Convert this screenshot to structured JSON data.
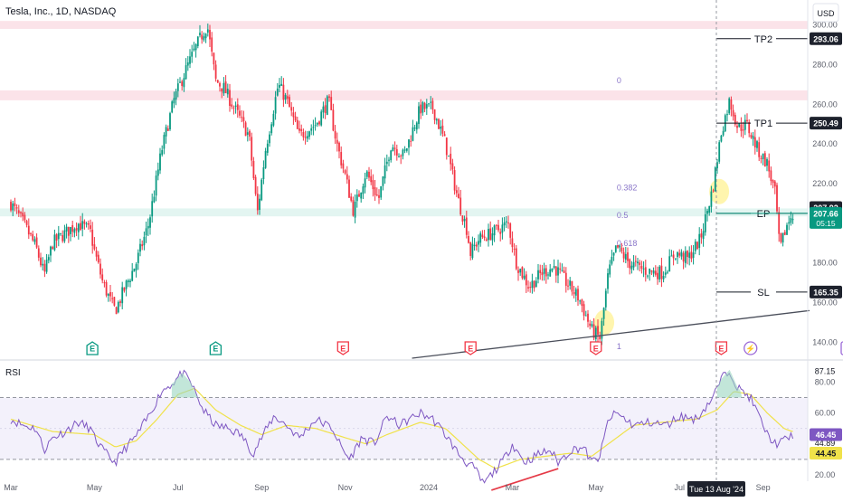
{
  "chart_data": {
    "type": "candlestick",
    "header": {
      "title": "Tesla, Inc., 1D, NASDAQ",
      "currency": "USD"
    },
    "price_axis": {
      "ticks": [
        300,
        280,
        260,
        240,
        220,
        200,
        180,
        160,
        140
      ],
      "tick_labels": [
        "300.00",
        "280.00",
        "260.00",
        "240.00",
        "220.00",
        "200.00",
        "180.00",
        "160.00",
        "140.00"
      ],
      "range": [
        132,
        308
      ]
    },
    "time_axis": {
      "labels": [
        "Mar",
        "May",
        "Jul",
        "Sep",
        "Nov",
        "2024",
        "Mar",
        "May",
        "Jul",
        "Sep"
      ],
      "label_months": [
        0,
        2,
        4,
        6,
        8,
        10,
        12,
        14,
        16,
        18
      ],
      "cursor_label": "Tue 13 Aug '24"
    },
    "zones": [
      {
        "name": "resistance-300",
        "from": 298,
        "to": 302,
        "color": "#fbe3e9"
      },
      {
        "name": "resistance-265",
        "from": 262,
        "to": 267,
        "color": "#fbe3e9"
      },
      {
        "name": "entry-zone",
        "from": 203.5,
        "to": 207.5,
        "color": "#e3f5f1"
      }
    ],
    "fibonacci": {
      "levels": [
        {
          "label": "0",
          "price": 272
        },
        {
          "label": "0.382",
          "price": 218
        },
        {
          "label": "0.5",
          "price": 204
        },
        {
          "label": "0.618",
          "price": 190
        },
        {
          "label": "1",
          "price": 138
        }
      ],
      "color": "#8a76c9"
    },
    "trend_lines": [
      {
        "name": "support-trendline",
        "from": {
          "month": 9.6,
          "price": 132
        },
        "to": {
          "month": 20.5,
          "price": 156
        },
        "color": "#4a4e5a"
      },
      {
        "name": "rsi-divergence",
        "from": {
          "month": 11.5,
          "rsi": 10
        },
        "to": {
          "month": 13.1,
          "rsi": 24
        },
        "color": "#e53a47"
      }
    ],
    "highlights": [
      {
        "name": "pivot-low-highlight",
        "month": 14.2,
        "price": 150
      },
      {
        "name": "fib-touch-highlight",
        "month": 16.95,
        "price": 216
      }
    ],
    "trade_levels": [
      {
        "label": "TP2",
        "price": 293.06,
        "value_label": "293.06"
      },
      {
        "label": "TP1",
        "price": 250.49,
        "value_label": "250.49"
      },
      {
        "label": "EP",
        "price": 205,
        "value_label": ""
      },
      {
        "label": "SL",
        "price": 165.35,
        "value_label": "165.35"
      }
    ],
    "price_markers": [
      {
        "value_label": "207.92",
        "price": 207.92,
        "style": "dark"
      },
      {
        "value_label": "207.66",
        "price": 205,
        "style": "green",
        "sub_label": "05:15"
      }
    ],
    "event_markers": [
      {
        "month": 1.95,
        "letter": "E",
        "type": "earnings-positive"
      },
      {
        "month": 4.9,
        "letter": "E",
        "type": "earnings-positive"
      },
      {
        "month": 7.95,
        "letter": "E",
        "type": "earnings-negative"
      },
      {
        "month": 11.0,
        "letter": "E",
        "type": "earnings-negative"
      },
      {
        "month": 14.0,
        "letter": "E",
        "type": "earnings-negative"
      },
      {
        "month": 17.0,
        "letter": "E",
        "type": "earnings-negative"
      },
      {
        "month": 17.7,
        "letter": "⚡",
        "type": "event"
      },
      {
        "month": 20.0,
        "letter": "E",
        "type": "earnings-future"
      }
    ],
    "price_anchors": [
      [
        0,
        210
      ],
      [
        0.3,
        200
      ],
      [
        0.6,
        188
      ],
      [
        0.8,
        174
      ],
      [
        1.0,
        190
      ],
      [
        1.3,
        195
      ],
      [
        1.6,
        200
      ],
      [
        1.9,
        196
      ],
      [
        2.0,
        186
      ],
      [
        2.2,
        170
      ],
      [
        2.4,
        160
      ],
      [
        2.5,
        156
      ],
      [
        2.7,
        166
      ],
      [
        3.0,
        180
      ],
      [
        3.3,
        200
      ],
      [
        3.6,
        236
      ],
      [
        3.9,
        262
      ],
      [
        4.2,
        278
      ],
      [
        4.5,
        292
      ],
      [
        4.7,
        300
      ],
      [
        4.9,
        272
      ],
      [
        5.1,
        268
      ],
      [
        5.4,
        256
      ],
      [
        5.7,
        244
      ],
      [
        5.9,
        205
      ],
      [
        6.1,
        238
      ],
      [
        6.4,
        270
      ],
      [
        6.6,
        262
      ],
      [
        6.9,
        244
      ],
      [
        7.3,
        250
      ],
      [
        7.6,
        262
      ],
      [
        7.8,
        240
      ],
      [
        8.0,
        224
      ],
      [
        8.2,
        206
      ],
      [
        8.5,
        226
      ],
      [
        8.8,
        212
      ],
      [
        9.1,
        240
      ],
      [
        9.4,
        234
      ],
      [
        9.8,
        258
      ],
      [
        10.1,
        258
      ],
      [
        10.4,
        240
      ],
      [
        10.7,
        212
      ],
      [
        10.9,
        198
      ],
      [
        11.0,
        185
      ],
      [
        11.2,
        192
      ],
      [
        11.6,
        196
      ],
      [
        11.9,
        200
      ],
      [
        12.1,
        180
      ],
      [
        12.4,
        168
      ],
      [
        12.7,
        175
      ],
      [
        13.0,
        178
      ],
      [
        13.3,
        170
      ],
      [
        13.6,
        162
      ],
      [
        13.9,
        146
      ],
      [
        14.1,
        142
      ],
      [
        14.3,
        175
      ],
      [
        14.5,
        188
      ],
      [
        14.8,
        180
      ],
      [
        15.2,
        176
      ],
      [
        15.6,
        175
      ],
      [
        15.9,
        185
      ],
      [
        16.2,
        182
      ],
      [
        16.5,
        192
      ],
      [
        16.8,
        218
      ],
      [
        17.0,
        246
      ],
      [
        17.2,
        262
      ],
      [
        17.4,
        248
      ],
      [
        17.6,
        250
      ],
      [
        17.9,
        236
      ],
      [
        18.1,
        230
      ],
      [
        18.3,
        214
      ],
      [
        18.4,
        186
      ],
      [
        18.55,
        198
      ],
      [
        18.7,
        205
      ]
    ],
    "rsi": {
      "title": "RSI",
      "upper_band": 70,
      "lower_band": 30,
      "range": [
        17,
        92
      ],
      "tick_labels": [
        "80.00",
        "60.00",
        "20.00"
      ],
      "ticks": [
        80,
        60,
        20
      ],
      "rsi_value_label": "46.45",
      "ma_value_label": "44.45",
      "extra_labels": [
        {
          "label": "87.15",
          "value": 87.15
        },
        {
          "label": "44.89",
          "value": 40.5
        }
      ],
      "anchors": [
        [
          0,
          56
        ],
        [
          0.3,
          52
        ],
        [
          0.6,
          50
        ],
        [
          0.8,
          36
        ],
        [
          1.0,
          44
        ],
        [
          1.3,
          48
        ],
        [
          1.6,
          54
        ],
        [
          1.9,
          50
        ],
        [
          2.0,
          44
        ],
        [
          2.2,
          36
        ],
        [
          2.4,
          30
        ],
        [
          2.5,
          28
        ],
        [
          2.7,
          36
        ],
        [
          3.0,
          45
        ],
        [
          3.3,
          58
        ],
        [
          3.6,
          74
        ],
        [
          3.9,
          80
        ],
        [
          4.1,
          86
        ],
        [
          4.3,
          80
        ],
        [
          4.6,
          62
        ],
        [
          4.9,
          52
        ],
        [
          5.2,
          50
        ],
        [
          5.5,
          46
        ],
        [
          5.8,
          34
        ],
        [
          6.0,
          44
        ],
        [
          6.3,
          58
        ],
        [
          6.6,
          52
        ],
        [
          6.9,
          44
        ],
        [
          7.3,
          56
        ],
        [
          7.7,
          50
        ],
        [
          7.9,
          38
        ],
        [
          8.1,
          30
        ],
        [
          8.4,
          44
        ],
        [
          8.7,
          40
        ],
        [
          9.0,
          58
        ],
        [
          9.3,
          52
        ],
        [
          9.8,
          60
        ],
        [
          10.1,
          56
        ],
        [
          10.4,
          46
        ],
        [
          10.7,
          34
        ],
        [
          10.9,
          28
        ],
        [
          11.1,
          24
        ],
        [
          11.3,
          14
        ],
        [
          11.5,
          20
        ],
        [
          11.8,
          30
        ],
        [
          12.0,
          40
        ],
        [
          12.3,
          28
        ],
        [
          12.6,
          33
        ],
        [
          12.9,
          36
        ],
        [
          13.1,
          28
        ],
        [
          13.4,
          36
        ],
        [
          13.7,
          38
        ],
        [
          13.9,
          28
        ],
        [
          14.1,
          32
        ],
        [
          14.3,
          56
        ],
        [
          14.5,
          60
        ],
        [
          14.9,
          52
        ],
        [
          15.3,
          54
        ],
        [
          15.7,
          52
        ],
        [
          16.0,
          58
        ],
        [
          16.4,
          56
        ],
        [
          16.8,
          70
        ],
        [
          17.0,
          82
        ],
        [
          17.2,
          88
        ],
        [
          17.4,
          76
        ],
        [
          17.7,
          70
        ],
        [
          17.9,
          58
        ],
        [
          18.1,
          46
        ],
        [
          18.3,
          40
        ],
        [
          18.5,
          42
        ],
        [
          18.7,
          46
        ]
      ],
      "ma_anchors": [
        [
          0,
          56
        ],
        [
          1.0,
          48
        ],
        [
          2.0,
          46
        ],
        [
          2.5,
          38
        ],
        [
          3.0,
          42
        ],
        [
          3.5,
          56
        ],
        [
          4.0,
          72
        ],
        [
          4.4,
          76
        ],
        [
          4.9,
          62
        ],
        [
          5.5,
          52
        ],
        [
          6.0,
          46
        ],
        [
          6.6,
          52
        ],
        [
          7.3,
          50
        ],
        [
          8.0,
          44
        ],
        [
          8.5,
          40
        ],
        [
          9.0,
          46
        ],
        [
          9.8,
          54
        ],
        [
          10.4,
          50
        ],
        [
          10.8,
          40
        ],
        [
          11.2,
          30
        ],
        [
          11.6,
          24
        ],
        [
          12.2,
          30
        ],
        [
          12.8,
          32
        ],
        [
          13.4,
          34
        ],
        [
          13.9,
          32
        ],
        [
          14.4,
          42
        ],
        [
          14.9,
          52
        ],
        [
          15.6,
          54
        ],
        [
          16.4,
          56
        ],
        [
          16.9,
          62
        ],
        [
          17.3,
          74
        ],
        [
          17.7,
          72
        ],
        [
          18.1,
          60
        ],
        [
          18.5,
          50
        ],
        [
          18.7,
          48
        ]
      ]
    },
    "colors": {
      "up": "#089981",
      "down": "#f23645",
      "rsi_line": "#7e57c2",
      "rsi_ma": "#f0e24a",
      "rsi_band_fill": "#f3f1fb",
      "grid_text": "#5d606b",
      "dark_label": "#1e222d",
      "green_label": "#089981",
      "event_green": "#089981",
      "event_red": "#f23645",
      "event_purple": "#9c6ad8",
      "highlight": "#fff3a0"
    }
  }
}
